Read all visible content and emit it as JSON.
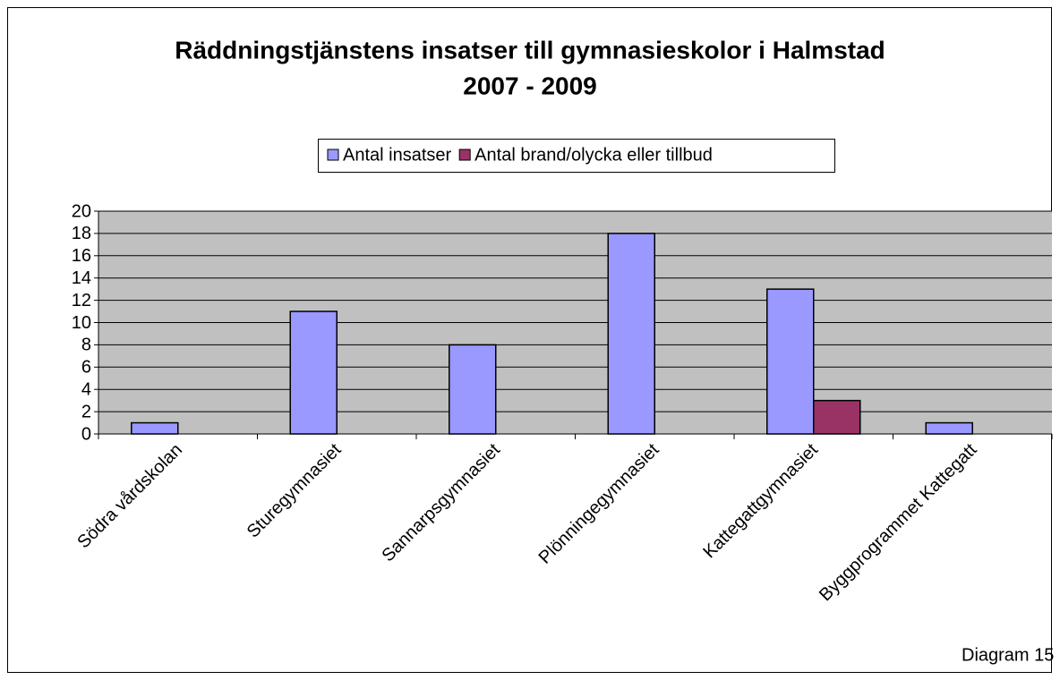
{
  "chart_data": {
    "type": "bar",
    "title": [
      "Räddningstjänstens insatser till gymnasieskolor i Halmstad",
      "2007 - 2009"
    ],
    "categories": [
      "Södra vårdskolan",
      "Sturegymnasiet",
      "Sannarpsgymnasiet",
      "Plönningegymnasiet",
      "Kattegattgymnasiet",
      "Byggprogrammet Kattegatt"
    ],
    "series": [
      {
        "name": "Antal insatser",
        "color": "#9999ff",
        "values": [
          1,
          11,
          8,
          18,
          13,
          1
        ]
      },
      {
        "name": "Antal brand/olycka eller tillbud",
        "color": "#993366",
        "values": [
          0,
          0,
          0,
          0,
          3,
          0
        ]
      }
    ],
    "ylim": [
      0,
      20
    ],
    "yticks": [
      0,
      2,
      4,
      6,
      8,
      10,
      12,
      14,
      16,
      18,
      20
    ],
    "grid": true,
    "legend": "top",
    "annotation": "Diagram 15"
  }
}
